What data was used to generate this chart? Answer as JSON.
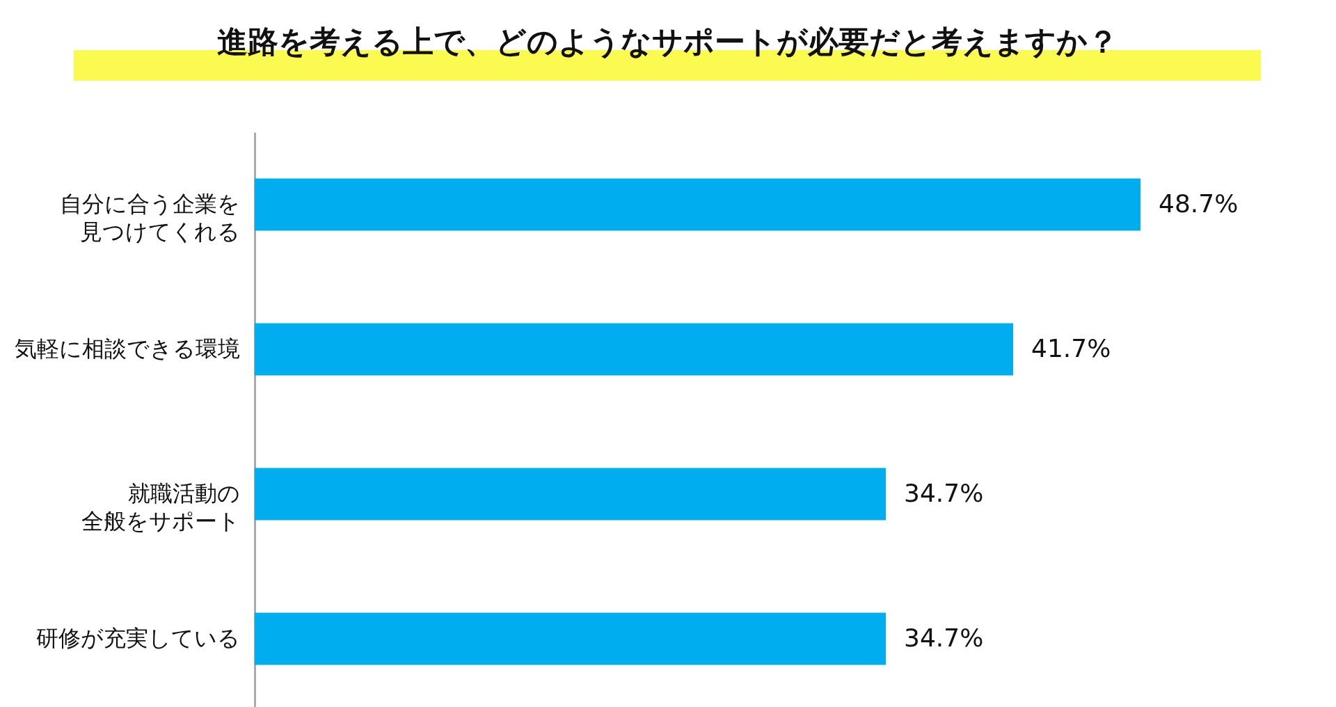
{
  "chart_data": {
    "type": "bar",
    "orientation": "horizontal",
    "title": "進路を考える上で、どのようなサポートが必要だと考えますか？",
    "categories": [
      "自分に合う企業を見つけてくれる",
      "気軽に相談できる環境",
      "就職活動の全般をサポート",
      "研修が充実している"
    ],
    "values": [
      48.7,
      41.7,
      34.7,
      34.7
    ],
    "color": "#00aeef",
    "value_labels": [
      "48.7%",
      "41.7%",
      "34.7%",
      "34.7%"
    ]
  }
}
